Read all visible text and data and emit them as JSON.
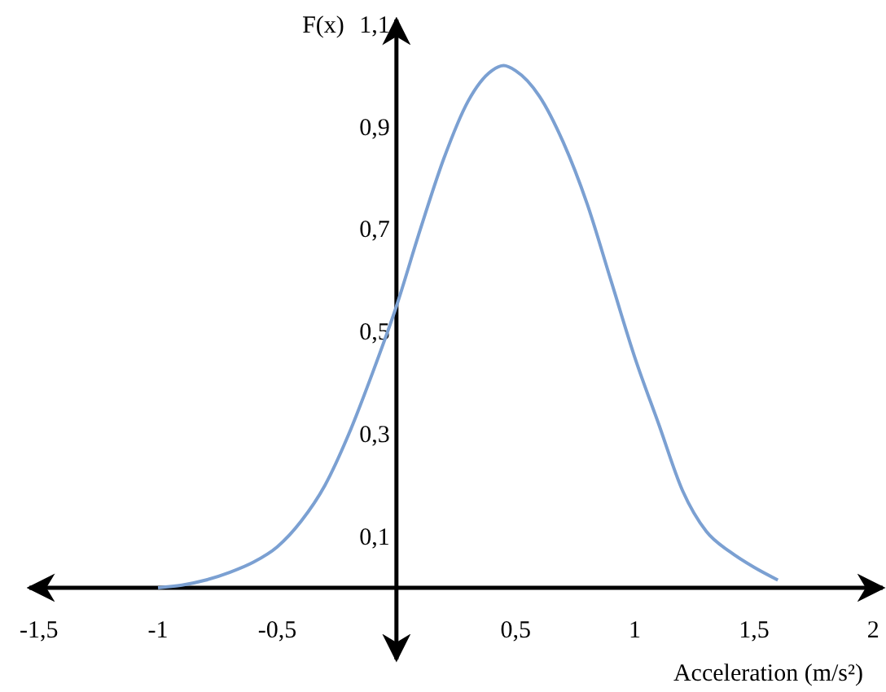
{
  "chart_data": {
    "type": "line",
    "ylabel": "F(x)",
    "xlabel": "Acceleration (m/s²)",
    "x": [
      -1.0,
      -0.9,
      -0.8,
      -0.7,
      -0.6,
      -0.5,
      -0.4,
      -0.3,
      -0.2,
      -0.1,
      0,
      0.1,
      0.2,
      0.3,
      0.4,
      0.45,
      0.5,
      0.6,
      0.7,
      0.8,
      0.9,
      1.0,
      1.1,
      1.2,
      1.3,
      1.4,
      1.5,
      1.6
    ],
    "series": [
      {
        "color": "#7ba0d2",
        "values": [
          0.0,
          0.005,
          0.015,
          0.03,
          0.05,
          0.08,
          0.13,
          0.2,
          0.3,
          0.42,
          0.55,
          0.7,
          0.84,
          0.95,
          1.01,
          1.02,
          1.01,
          0.96,
          0.87,
          0.75,
          0.6,
          0.45,
          0.32,
          0.19,
          0.11,
          0.07,
          0.04,
          0.015
        ]
      }
    ],
    "xlim": [
      -1.54,
      2.04
    ],
    "ylim": [
      -0.14,
      1.11
    ],
    "xticks": [
      {
        "value": -1.5,
        "label": "-1,5"
      },
      {
        "value": -1,
        "label": "-1"
      },
      {
        "value": -0.5,
        "label": "-0,5"
      },
      {
        "value": 0.5,
        "label": "0,5"
      },
      {
        "value": 1,
        "label": "1"
      },
      {
        "value": 1.5,
        "label": "1,5"
      },
      {
        "value": 2,
        "label": "2"
      }
    ],
    "yticks": [
      {
        "value": 0.1,
        "label": "0,1"
      },
      {
        "value": 0.3,
        "label": "0,3"
      },
      {
        "value": 0.5,
        "label": "0,5"
      },
      {
        "value": 0.7,
        "label": "0,7"
      },
      {
        "value": 0.9,
        "label": "0,9"
      },
      {
        "value": 1.1,
        "label": "1,1"
      }
    ],
    "grid": false,
    "marker": "none",
    "line_style": "solid"
  }
}
